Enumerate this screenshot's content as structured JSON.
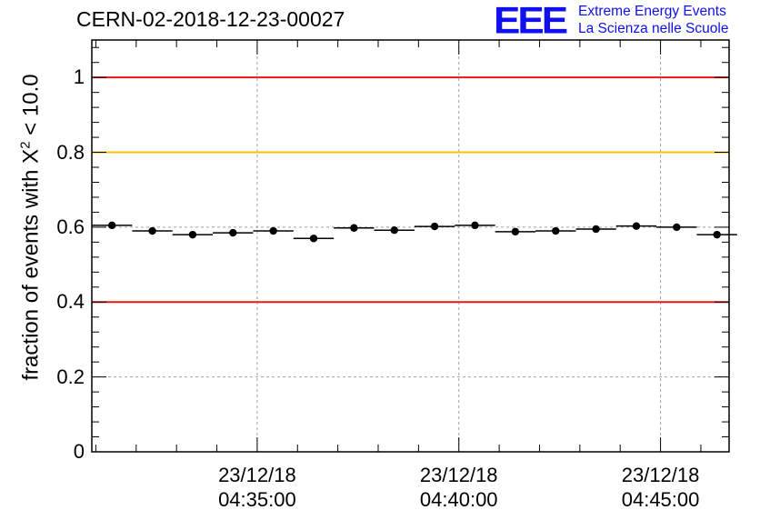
{
  "title": "CERN-02-2018-12-23-00027",
  "logo": {
    "mark": "EEE",
    "line1": "Extreme Energy Events",
    "line2": "La Scienza nelle Scuole",
    "color": "#1010ee"
  },
  "chart_data": {
    "type": "scatter",
    "title": "CERN-02-2018-12-23-00027",
    "xlabel": "",
    "ylabel_prefix": "fraction of events with ",
    "ylabel_symbol": "X",
    "ylabel_sup": "2",
    "ylabel_suffix": " < 10.0",
    "ylim": [
      0,
      1.1
    ],
    "xlim_minutes": [
      30.9,
      46.7
    ],
    "grid": true,
    "y_ticks": [
      "0",
      "0.2",
      "0.4",
      "0.6",
      "0.8",
      "1"
    ],
    "y_tick_values": [
      0,
      0.2,
      0.4,
      0.6,
      0.8,
      1.0
    ],
    "x_ticks": [
      {
        "minute": 35,
        "date": "23/12/18",
        "time": "04:35:00"
      },
      {
        "minute": 40,
        "date": "23/12/18",
        "time": "04:40:00"
      },
      {
        "minute": 45,
        "date": "23/12/18",
        "time": "04:45:00"
      }
    ],
    "reference_lines": [
      {
        "y": 1.0,
        "color": "#e31a1c"
      },
      {
        "y": 0.8,
        "color": "#ffc000"
      },
      {
        "y": 0.4,
        "color": "#e31a1c"
      }
    ],
    "bin_width_minutes": 1.0,
    "series": [
      {
        "name": "fraction",
        "x_minutes": [
          31.4,
          32.4,
          33.4,
          34.4,
          35.4,
          36.4,
          37.4,
          38.4,
          39.4,
          40.4,
          41.4,
          42.4,
          43.4,
          44.4,
          45.4,
          46.4
        ],
        "values": [
          0.605,
          0.59,
          0.58,
          0.585,
          0.59,
          0.57,
          0.598,
          0.592,
          0.602,
          0.605,
          0.588,
          0.59,
          0.595,
          0.603,
          0.6,
          0.58
        ]
      }
    ]
  }
}
